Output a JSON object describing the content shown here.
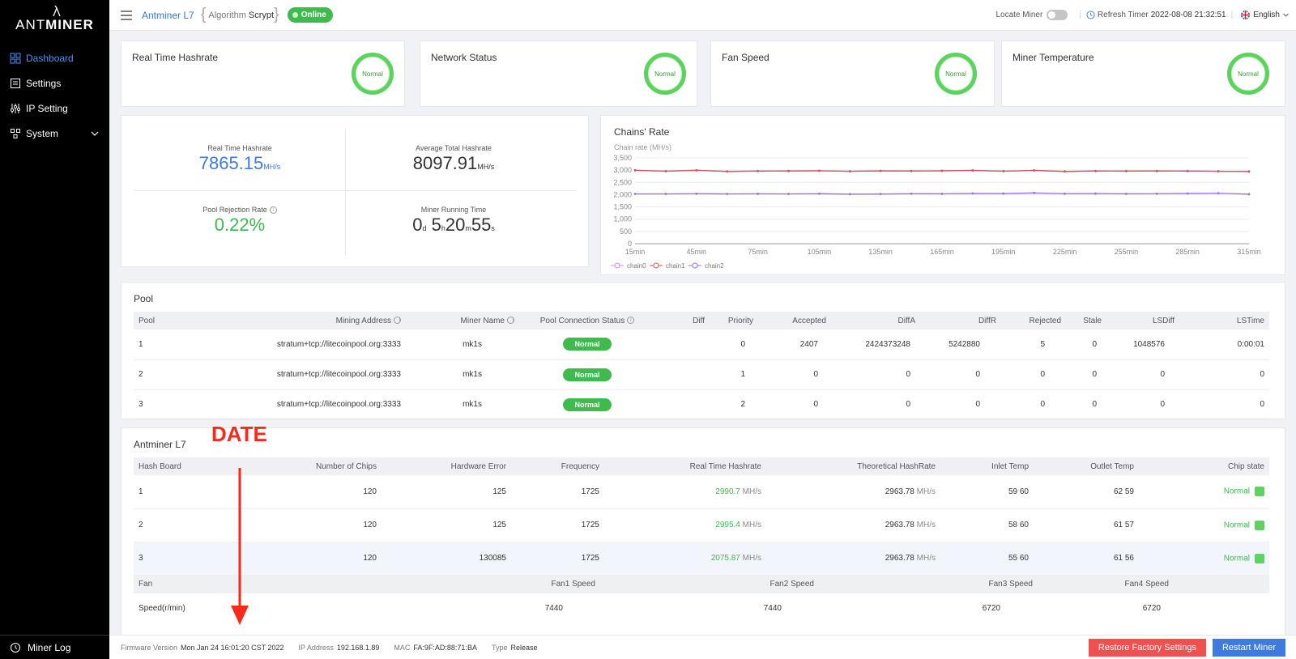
{
  "sidebar": {
    "logo_thin": "ANT",
    "logo_bold": "MINER",
    "items": [
      {
        "label": "Dashboard",
        "icon": "dashboard-icon"
      },
      {
        "label": "Settings",
        "icon": "settings-icon"
      },
      {
        "label": "IP Setting",
        "icon": "ip-setting-icon"
      },
      {
        "label": "System",
        "icon": "system-icon"
      }
    ],
    "miner_log": "Miner Log"
  },
  "header": {
    "model": "Antminer L7",
    "algorithm_label": "Algorithm",
    "algorithm_value": "Scrypt",
    "status": "Online",
    "locate_miner": "Locate Miner",
    "refresh_label": "Refresh Timer",
    "refresh_value": "2022-08-08 21:32:51",
    "language": "English"
  },
  "status_cards": [
    {
      "title": "Real Time Hashrate",
      "status": "Normal"
    },
    {
      "title": "Network Status",
      "status": "Normal"
    },
    {
      "title": "Fan Speed",
      "status": "Normal"
    },
    {
      "title": "Miner Temperature",
      "status": "Normal"
    }
  ],
  "metrics": {
    "realtime": {
      "label": "Real Time Hashrate",
      "value": "7865.15",
      "unit": "MH/s"
    },
    "average": {
      "label": "Average Total Hashrate",
      "value": "8097.91",
      "unit": "MH/s"
    },
    "rejection": {
      "label": "Pool Rejection Rate",
      "value": "0.22%"
    },
    "runtime": {
      "label": "Miner Running Time",
      "d": "0",
      "du": "d",
      "h": "5",
      "hu": "h",
      "m": "20",
      "mu": "m",
      "s": "55",
      "su": "s"
    }
  },
  "chart_data": {
    "type": "line",
    "title": "Chains' Rate",
    "ylabel": "Chain rate (MH/s)",
    "ylim": [
      0,
      3500
    ],
    "yticks": [
      "0",
      "500",
      "1,000",
      "1,500",
      "2,000",
      "2,500",
      "3,000",
      "3,500"
    ],
    "x": [
      "15min",
      "30min",
      "45min",
      "60min",
      "75min",
      "90min",
      "105min",
      "120min",
      "135min",
      "150min",
      "165min",
      "180min",
      "195min",
      "210min",
      "225min",
      "240min",
      "255min",
      "270min",
      "285min",
      "300min",
      "315min"
    ],
    "xtick_labels": [
      "15min",
      "45min",
      "75min",
      "105min",
      "135min",
      "165min",
      "195min",
      "225min",
      "255min",
      "285min",
      "315min"
    ],
    "series": [
      {
        "name": "chain0",
        "color": "#d98ad9",
        "values": [
          2990,
          2960,
          2990,
          2950,
          2965,
          2960,
          2970,
          2955,
          2965,
          2960,
          2975,
          2980,
          2960,
          2980,
          2950,
          2960,
          2965,
          2960,
          2970,
          2955,
          2940
        ]
      },
      {
        "name": "chain1",
        "color": "#c95a5a",
        "values": [
          2995,
          2955,
          2995,
          2945,
          2960,
          2965,
          2975,
          2950,
          2970,
          2965,
          2970,
          2990,
          2955,
          2990,
          2945,
          2965,
          2960,
          2965,
          2960,
          2950,
          2945
        ]
      },
      {
        "name": "chain2",
        "color": "#9b6fe0",
        "values": [
          2030,
          2030,
          2040,
          2030,
          2035,
          2030,
          2040,
          2020,
          2025,
          2040,
          2035,
          2050,
          2045,
          2070,
          2040,
          2045,
          2035,
          2040,
          2050,
          2060,
          2020
        ]
      }
    ],
    "legend": "bottom-left"
  },
  "pool": {
    "title": "Pool",
    "columns": [
      "Pool",
      "Mining Address",
      "Miner Name",
      "Pool Connection Status",
      "Diff",
      "Priority",
      "Accepted",
      "DiffA",
      "DiffR",
      "Rejected",
      "Stale",
      "LSDiff",
      "LSTime"
    ],
    "rows": [
      {
        "pool": "1",
        "address": "stratum+tcp://litecoinpool.org:3333",
        "name": "mk1s",
        "status": "Normal",
        "diff": "",
        "priority": "0",
        "accepted": "2407",
        "diffa": "2424373248",
        "diffr": "5242880",
        "rejected": "5",
        "stale": "0",
        "lsdiff": "1048576",
        "lstime": "0:00:01"
      },
      {
        "pool": "2",
        "address": "stratum+tcp://litecoinpool.org:3333",
        "name": "mk1s",
        "status": "Normal",
        "diff": "",
        "priority": "1",
        "accepted": "0",
        "diffa": "0",
        "diffr": "0",
        "rejected": "0",
        "stale": "0",
        "lsdiff": "0",
        "lstime": "0"
      },
      {
        "pool": "3",
        "address": "stratum+tcp://litecoinpool.org:3333",
        "name": "mk1s",
        "status": "Normal",
        "diff": "",
        "priority": "2",
        "accepted": "0",
        "diffa": "0",
        "diffr": "0",
        "rejected": "0",
        "stale": "0",
        "lsdiff": "0",
        "lstime": "0"
      }
    ]
  },
  "boards": {
    "title": "Antminer L7",
    "columns": [
      "Hash Board",
      "Number of Chips",
      "Hardware Error",
      "Frequency",
      "Real Time Hashrate",
      "Theoretical HashRate",
      "Inlet Temp",
      "Outlet Temp",
      "Chip state"
    ],
    "unit": "MH/s",
    "rows": [
      {
        "board": "1",
        "chips": "120",
        "hwerr": "125",
        "freq": "1725",
        "rate": "2990.7",
        "theo": "2963.78",
        "inlet": "59 60",
        "outlet": "62 59",
        "state": "Normal"
      },
      {
        "board": "2",
        "chips": "120",
        "hwerr": "125",
        "freq": "1725",
        "rate": "2995.4",
        "theo": "2963.78",
        "inlet": "58 60",
        "outlet": "61 57",
        "state": "Normal"
      },
      {
        "board": "3",
        "chips": "120",
        "hwerr": "130085",
        "freq": "1725",
        "rate": "2075.87",
        "theo": "2963.78",
        "inlet": "55 60",
        "outlet": "61 56",
        "state": "Normal"
      }
    ],
    "fan_columns": [
      "Fan",
      "Fan1 Speed",
      "Fan2 Speed",
      "Fan3 Speed",
      "Fan4 Speed"
    ],
    "fan_row": [
      "Speed(r/min)",
      "7440",
      "7440",
      "6720",
      "6720"
    ]
  },
  "footer": {
    "firmware_label": "Firmware Version",
    "firmware_value": "Mon Jan 24 16:01:20 CST 2022",
    "ip_label": "IP Address",
    "ip_value": "192.168.1.89",
    "mac_label": "MAC",
    "mac_value": "FA:9F:AD:88:71:BA",
    "type_label": "Type",
    "type_value": "Release",
    "restore_button": "Restore Factory Settings",
    "restart_button": "Restart Miner"
  },
  "annotation": {
    "text": "DATE",
    "color": "#f52a1a"
  }
}
